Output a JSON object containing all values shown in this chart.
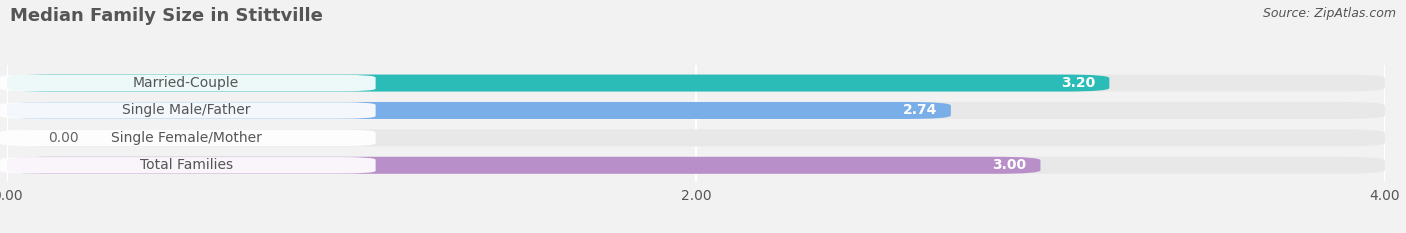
{
  "title": "Median Family Size in Stittville",
  "source": "Source: ZipAtlas.com",
  "categories": [
    "Married-Couple",
    "Single Male/Father",
    "Single Female/Mother",
    "Total Families"
  ],
  "values": [
    3.2,
    2.74,
    0.0,
    3.0
  ],
  "bar_colors": [
    "#2bbcb8",
    "#7aaee8",
    "#f4a0aa",
    "#b88fc8"
  ],
  "xlim": [
    0,
    4.0
  ],
  "xticks": [
    0.0,
    2.0,
    4.0
  ],
  "xtick_labels": [
    "0.00",
    "2.00",
    "4.00"
  ],
  "bar_height": 0.62,
  "bar_gap": 0.38,
  "label_fontsize": 10,
  "value_fontsize": 10,
  "title_fontsize": 13,
  "source_fontsize": 9,
  "background_color": "#f2f2f2",
  "bar_bg_color": "#e8e8e8",
  "grid_color": "#cccccc",
  "text_color": "#555555",
  "label_text_color": "#555555",
  "value_color_inside": "white",
  "value_color_outside": "#666666"
}
